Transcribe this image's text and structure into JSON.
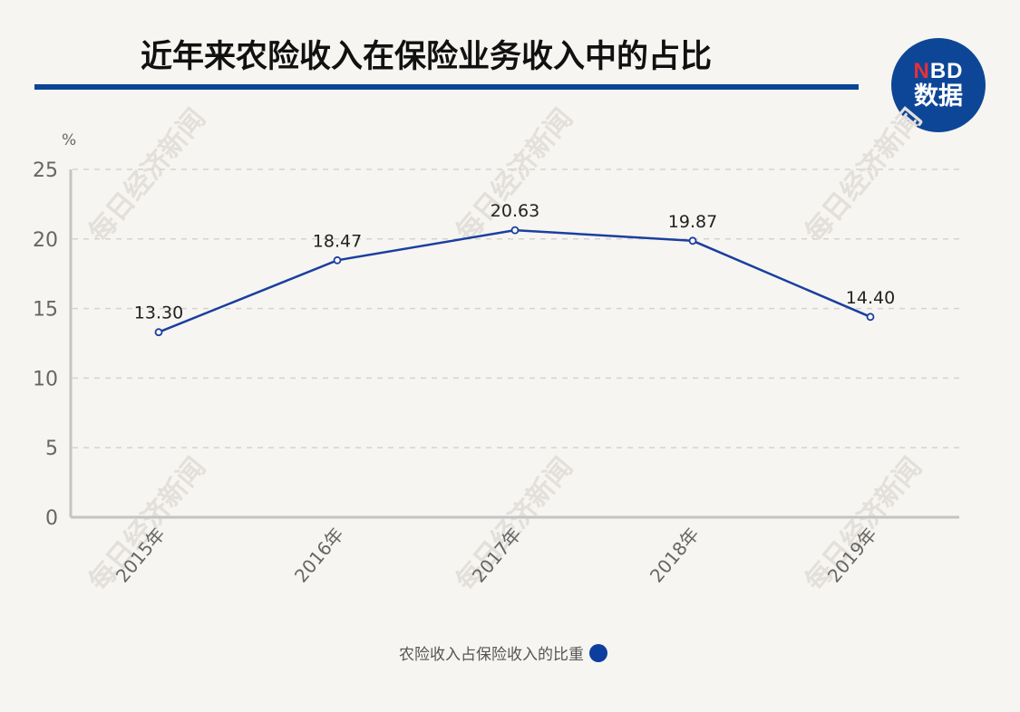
{
  "header": {
    "title": "近年来农险收入在保险业务收入中的占比",
    "rule_color": "#0b4596"
  },
  "logo": {
    "top_text_n": "N",
    "top_text_rest": "BD",
    "bottom_text": "数据",
    "bg_color": "#0e4697",
    "accent_color": "#e8303a"
  },
  "watermark": "每日经济新闻",
  "chart_data": {
    "type": "line",
    "title": "近年来农险收入在保险业务收入中的占比",
    "xlabel": "",
    "ylabel": "%",
    "categories": [
      "2015年",
      "2016年",
      "2017年",
      "2018年",
      "2019年"
    ],
    "series": [
      {
        "name": "农险收入占保险收入的比重",
        "values": [
          13.3,
          18.47,
          20.63,
          19.87,
          14.4
        ],
        "labels": [
          "13.30",
          "18.47",
          "20.63",
          "19.87",
          "14.40"
        ],
        "color": "#1a3fa0"
      }
    ],
    "ylim": [
      0,
      25
    ],
    "yticks": [
      "0",
      "5",
      "10",
      "15",
      "20",
      "25"
    ],
    "grid": true,
    "legend_position": "bottom"
  },
  "legend": {
    "label": "农险收入占保险收入的比重",
    "color": "#0e3da0"
  }
}
